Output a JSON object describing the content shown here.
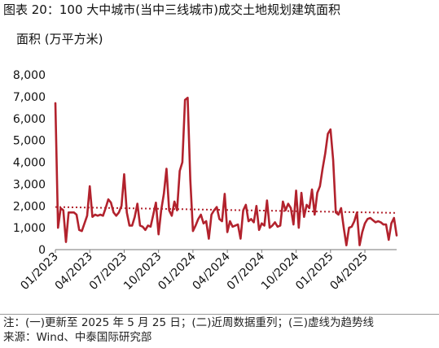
{
  "title": "图表 20：100 大中城市(当中三线城市)成交土地规划建筑面积",
  "unit_label": "面积 (万平方米)",
  "footnote": "注：(一)更新至 2025 年 5 月 25 日；(二)近周数据重列；(三)虚线为趋势线",
  "source": "来源：Wind、中泰国际研究部",
  "colors": {
    "series": "#b2222d",
    "trend": "#b2222d"
  },
  "chart_data": {
    "type": "line",
    "ylim": [
      0,
      8000
    ],
    "yticks": [
      "0",
      "1,000",
      "2,000",
      "3,000",
      "4,000",
      "5,000",
      "6,000",
      "7,000",
      "8,000"
    ],
    "xticks": [
      {
        "label": "01/2023",
        "week": 0
      },
      {
        "label": "04/2023",
        "week": 13
      },
      {
        "label": "07/2023",
        "week": 26
      },
      {
        "label": "10/2023",
        "week": 39
      },
      {
        "label": "01/2024",
        "week": 52
      },
      {
        "label": "04/2024",
        "week": 65
      },
      {
        "label": "07/2024",
        "week": 78
      },
      {
        "label": "10/2024",
        "week": 91
      },
      {
        "label": "01/2025",
        "week": 104
      },
      {
        "label": "04/2025",
        "week": 117
      }
    ],
    "grid": false,
    "trend": {
      "start": 1950,
      "end": 1680,
      "style": "dotted"
    },
    "series": [
      {
        "values": [
          6700,
          1000,
          1900,
          1800,
          350,
          1700,
          1700,
          1700,
          1600,
          900,
          850,
          1200,
          1550,
          2900,
          1500,
          1600,
          1550,
          1600,
          1550,
          1900,
          2300,
          2150,
          1700,
          1550,
          1700,
          2000,
          3450,
          1700,
          1100,
          1100,
          1500,
          2100,
          1100,
          1050,
          900,
          1100,
          1050,
          1600,
          2150,
          700,
          1800,
          2550,
          3700,
          1800,
          1550,
          2200,
          1800,
          3600,
          4000,
          6850,
          6950,
          3200,
          850,
          1100,
          1400,
          1600,
          1200,
          1300,
          500,
          1600,
          1800,
          1950,
          1400,
          1300,
          2550,
          800,
          1300,
          1050,
          1100,
          1150,
          500,
          1800,
          2050,
          1300,
          1400,
          1250,
          2000,
          900,
          1200,
          1100,
          2250,
          1000,
          1100,
          1250,
          1050,
          1100,
          2200,
          1800,
          2100,
          1900,
          1150,
          2700,
          1000,
          2600,
          1500,
          2050,
          1900,
          2750,
          1600,
          2600,
          2900,
          3700,
          4400,
          5300,
          5500,
          4100,
          1700,
          1600,
          1900,
          1000,
          200,
          1000,
          1050,
          1300,
          1700,
          200,
          800,
          1200,
          1400,
          1450,
          1350,
          1250,
          1300,
          1250,
          1150,
          1150,
          450,
          1200,
          1450,
          650
        ]
      }
    ]
  }
}
